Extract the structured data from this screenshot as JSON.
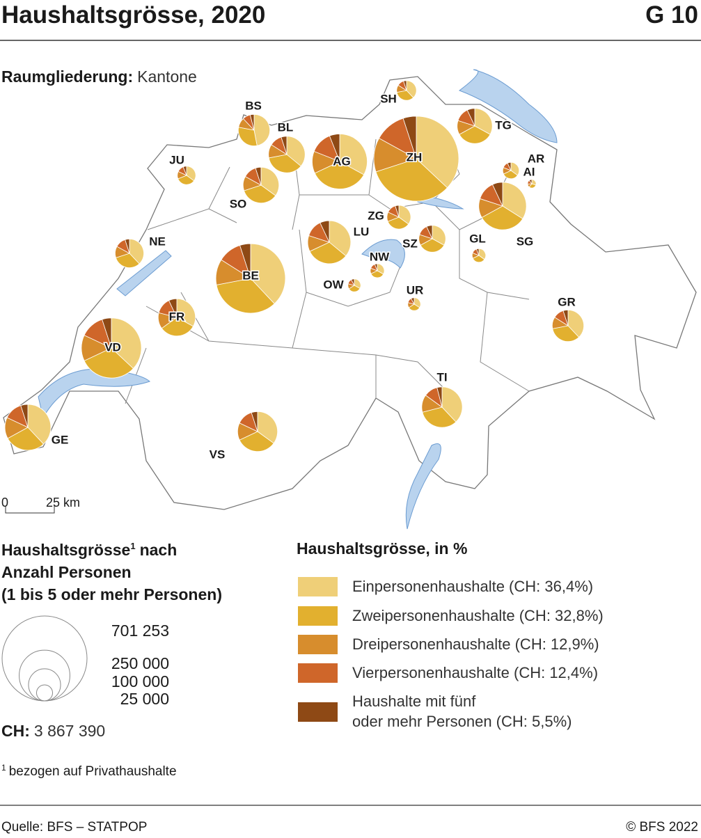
{
  "chart_data": {
    "type": "pie-map",
    "title": "Haushaltsgrösse, 2020",
    "badge": "G 10",
    "region_label": "Raumgliederung:",
    "region_value": "Kantone",
    "scale_start": "0",
    "scale_end": "25 km",
    "series": [
      {
        "name": "Einpersonenhaushalte (CH: 36,4%)",
        "color": "#efcf78"
      },
      {
        "name": "Zweipersonenhaushalte (CH: 32,8%)",
        "color": "#e2b02f"
      },
      {
        "name": "Dreipersonenhaushalte (CH: 12,9%)",
        "color": "#d78d2d"
      },
      {
        "name": "Vierpersonenhaushalte (CH: 12,4%)",
        "color": "#cf662a"
      },
      {
        "name": "Haushalte mit fünf\noder mehr Personen (CH: 5,5%)",
        "color": "#8e4915"
      }
    ],
    "color_legend_title": "Haushaltsgrösse, in %",
    "regions": [
      {
        "name": "ZH",
        "households": 701253,
        "values": [
          37,
          33,
          13,
          12,
          5
        ]
      },
      {
        "name": "BE",
        "households": 470000,
        "values": [
          38,
          34,
          12,
          11,
          5
        ]
      },
      {
        "name": "VD",
        "households": 350000,
        "values": [
          37,
          31,
          14,
          13,
          5
        ]
      },
      {
        "name": "AG",
        "households": 295000,
        "values": [
          33,
          35,
          13,
          13,
          6
        ]
      },
      {
        "name": "SG",
        "households": 220000,
        "values": [
          34,
          33,
          13,
          13,
          7
        ]
      },
      {
        "name": "GE",
        "households": 205000,
        "values": [
          38,
          29,
          15,
          13,
          5
        ]
      },
      {
        "name": "LU",
        "households": 180000,
        "values": [
          36,
          32,
          12,
          13,
          7
        ]
      },
      {
        "name": "TI",
        "households": 160000,
        "values": [
          38,
          33,
          14,
          11,
          4
        ]
      },
      {
        "name": "VS",
        "households": 155000,
        "values": [
          35,
          33,
          14,
          13,
          5
        ]
      },
      {
        "name": "FR",
        "households": 135000,
        "values": [
          33,
          32,
          14,
          14,
          7
        ]
      },
      {
        "name": "BL",
        "households": 130000,
        "values": [
          36,
          36,
          12,
          11,
          5
        ]
      },
      {
        "name": "SO",
        "households": 125000,
        "values": [
          35,
          35,
          13,
          12,
          5
        ]
      },
      {
        "name": "TG",
        "households": 120000,
        "values": [
          33,
          34,
          13,
          13,
          7
        ]
      },
      {
        "name": "GR",
        "households": 97000,
        "values": [
          38,
          34,
          12,
          11,
          5
        ]
      },
      {
        "name": "BS",
        "households": 97000,
        "values": [
          47,
          31,
          10,
          8,
          4
        ]
      },
      {
        "name": "NE",
        "households": 80000,
        "values": [
          38,
          32,
          13,
          12,
          5
        ]
      },
      {
        "name": "SZ",
        "households": 70000,
        "values": [
          33,
          34,
          13,
          13,
          7
        ]
      },
      {
        "name": "ZG",
        "households": 55000,
        "values": [
          35,
          34,
          13,
          13,
          5
        ]
      },
      {
        "name": "SH",
        "households": 38000,
        "values": [
          38,
          34,
          12,
          11,
          5
        ]
      },
      {
        "name": "JU",
        "households": 33000,
        "values": [
          35,
          34,
          13,
          12,
          6
        ]
      },
      {
        "name": "AR",
        "households": 26000,
        "values": [
          35,
          33,
          13,
          12,
          7
        ]
      },
      {
        "name": "NW",
        "households": 19000,
        "values": [
          33,
          35,
          13,
          13,
          6
        ]
      },
      {
        "name": "GL",
        "households": 18000,
        "values": [
          35,
          33,
          13,
          13,
          6
        ]
      },
      {
        "name": "OW",
        "households": 16000,
        "values": [
          33,
          33,
          13,
          13,
          8
        ]
      },
      {
        "name": "UR",
        "households": 16000,
        "values": [
          34,
          32,
          13,
          13,
          8
        ]
      },
      {
        "name": "AI",
        "households": 7000,
        "values": [
          30,
          31,
          13,
          15,
          11
        ]
      }
    ],
    "size_legend": {
      "title_start": "Haushaltsgrösse",
      "title_note": "1",
      "title_end": "nach",
      "lines": [
        "Anzahl Personen",
        "(1 bis 5 oder mehr Personen)"
      ],
      "ticks": [
        {
          "value": 701253,
          "label": "701 253"
        },
        {
          "value": 250000,
          "label": "250 000"
        },
        {
          "value": 100000,
          "label": "100 000"
        },
        {
          "value": 25000,
          "label": "25 000"
        }
      ]
    },
    "total_label": "CH:",
    "total": {
      "value": 3867390,
      "label": "3 867 390"
    },
    "footnote_mark": "1",
    "footnote": "bezogen auf Privathaushalte",
    "source": "Quelle: BFS – STATPOP",
    "copyright": "© BFS 2022"
  }
}
